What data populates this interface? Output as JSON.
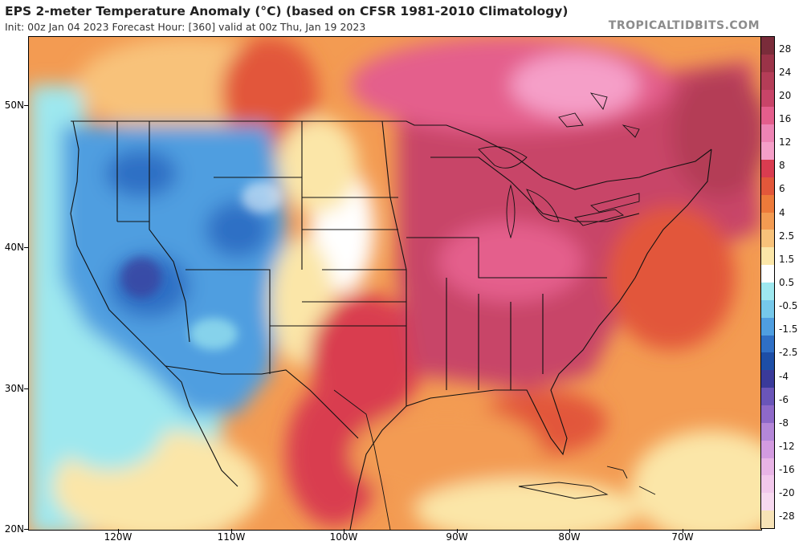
{
  "header": {
    "title": "EPS 2-meter Temperature Anomaly (°C) (based on CFSR 1981-2010 Climatology)",
    "subtitle": "Init: 00z Jan 04 2023   Forecast Hour: [360]   valid at 00z Thu, Jan 19 2023",
    "brand": "TROPICALTIDBITS.COM"
  },
  "map": {
    "lat_labels": [
      "50N",
      "40N",
      "30N",
      "20N"
    ],
    "lon_labels": [
      "120W",
      "110W",
      "100W",
      "90W",
      "80W",
      "70W"
    ]
  },
  "colorbar": {
    "labels": [
      "28",
      "24",
      "20",
      "16",
      "12",
      "8",
      "6",
      "4",
      "2.5",
      "1.5",
      "0.5",
      "-0.5",
      "-1.5",
      "-2.5",
      "-4",
      "-6",
      "-8",
      "-12",
      "-16",
      "-20",
      "-28"
    ],
    "colors": [
      "#7a2c3a",
      "#9b3348",
      "#b43d57",
      "#c84468",
      "#e45e8c",
      "#ee84b4",
      "#f59fc8",
      "#d93c50",
      "#e2573a",
      "#ed7a3a",
      "#f39b52",
      "#f8c27a",
      "#fbe6a8",
      "#ffffff",
      "#9ee8ef",
      "#76c8ea",
      "#4f9ee0",
      "#2f6fc5",
      "#1d4ea6",
      "#3a3a9a",
      "#6a55b8",
      "#8e69c8",
      "#b487d8",
      "#d39be0",
      "#e8b4e6",
      "#f2c8ec",
      "#f7d9f0",
      "#f7e3b6"
    ]
  }
}
